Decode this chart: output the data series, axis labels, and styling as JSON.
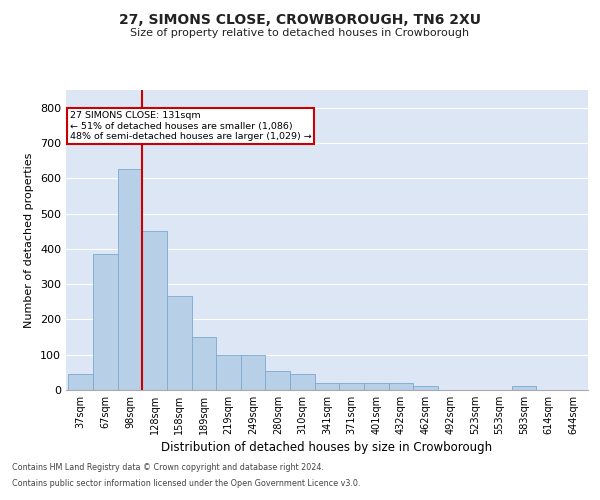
{
  "title1": "27, SIMONS CLOSE, CROWBOROUGH, TN6 2XU",
  "title2": "Size of property relative to detached houses in Crowborough",
  "xlabel": "Distribution of detached houses by size in Crowborough",
  "ylabel": "Number of detached properties",
  "categories": [
    "37sqm",
    "67sqm",
    "98sqm",
    "128sqm",
    "158sqm",
    "189sqm",
    "219sqm",
    "249sqm",
    "280sqm",
    "310sqm",
    "341sqm",
    "371sqm",
    "401sqm",
    "432sqm",
    "462sqm",
    "492sqm",
    "523sqm",
    "553sqm",
    "583sqm",
    "614sqm",
    "644sqm"
  ],
  "values": [
    45,
    385,
    625,
    450,
    265,
    150,
    100,
    100,
    55,
    45,
    20,
    20,
    20,
    20,
    10,
    0,
    0,
    0,
    10,
    0,
    0
  ],
  "bar_color": "#b8cfe8",
  "bar_edge_color": "#7aaad0",
  "vline_color": "#cc0000",
  "annotation_text": "27 SIMONS CLOSE: 131sqm\n← 51% of detached houses are smaller (1,086)\n48% of semi-detached houses are larger (1,029) →",
  "annotation_box_color": "#ffffff",
  "annotation_box_edgecolor": "#cc0000",
  "ylim": [
    0,
    850
  ],
  "yticks": [
    0,
    100,
    200,
    300,
    400,
    500,
    600,
    700,
    800
  ],
  "background_color": "#dce6f5",
  "grid_color": "#ffffff",
  "footer1": "Contains HM Land Registry data © Crown copyright and database right 2024.",
  "footer2": "Contains public sector information licensed under the Open Government Licence v3.0."
}
